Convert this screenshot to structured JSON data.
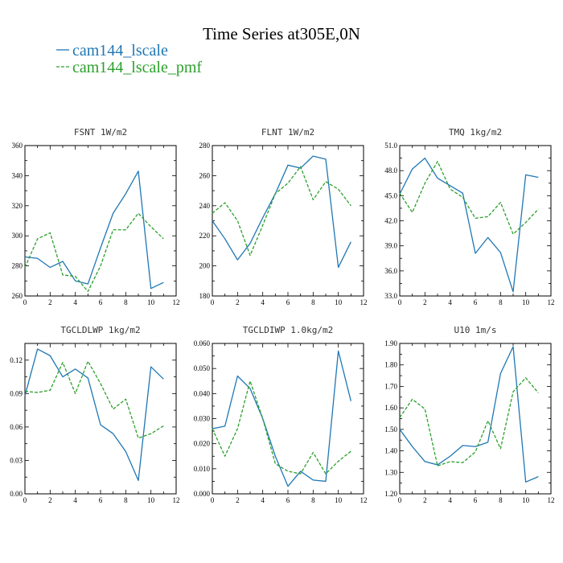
{
  "figure": {
    "title": "Time Series at305E,0N",
    "legend": [
      {
        "label": "cam144_lscale",
        "color": "#1f77b4",
        "dash": "solid"
      },
      {
        "label": "cam144_lscale_pmf",
        "color": "#2ca02c",
        "dash": "dashed"
      }
    ]
  },
  "chart_data": [
    {
      "type": "line",
      "title": "FSNT   1W/m2",
      "x": [
        0,
        1,
        2,
        3,
        4,
        5,
        6,
        7,
        8,
        9,
        10,
        11
      ],
      "xlim": [
        0,
        12
      ],
      "xticks": [
        "0",
        "2",
        "4",
        "6",
        "8",
        "10",
        "12"
      ],
      "ylim": [
        260,
        360
      ],
      "yticks": [
        "260",
        "280",
        "300",
        "320",
        "340",
        "360"
      ],
      "grid": false,
      "series": [
        {
          "name": "cam144_lscale",
          "values": [
            286,
            285,
            279,
            283,
            270,
            268,
            292,
            315,
            328,
            343,
            265,
            269
          ]
        },
        {
          "name": "cam144_lscale_pmf",
          "values": [
            279,
            298,
            302,
            274,
            273,
            263,
            280,
            304,
            304,
            315,
            306,
            298
          ]
        }
      ]
    },
    {
      "type": "line",
      "title": "FLNT   1W/m2",
      "x": [
        0,
        1,
        2,
        3,
        4,
        5,
        6,
        7,
        8,
        9,
        10,
        11
      ],
      "xlim": [
        0,
        12
      ],
      "xticks": [
        "0",
        "2",
        "4",
        "6",
        "8",
        "10",
        "12"
      ],
      "ylim": [
        180,
        280
      ],
      "yticks": [
        "180",
        "200",
        "220",
        "240",
        "260",
        "280"
      ],
      "grid": false,
      "series": [
        {
          "name": "cam144_lscale",
          "values": [
            230,
            218,
            204,
            215,
            232,
            248,
            267,
            265,
            273,
            271,
            199,
            216
          ]
        },
        {
          "name": "cam144_lscale_pmf",
          "values": [
            235,
            242,
            230,
            207,
            227,
            248,
            255,
            266,
            244,
            256,
            251,
            240
          ]
        }
      ]
    },
    {
      "type": "line",
      "title": "TMQ   1kg/m2",
      "x": [
        0,
        1,
        2,
        3,
        4,
        5,
        6,
        7,
        8,
        9,
        10,
        11
      ],
      "xlim": [
        0,
        12
      ],
      "xticks": [
        "0",
        "2",
        "4",
        "6",
        "8",
        "10",
        "12"
      ],
      "ylim": [
        33.0,
        51.0
      ],
      "yticks": [
        "33.0",
        "36.0",
        "39.0",
        "42.0",
        "45.0",
        "48.0",
        "51.0"
      ],
      "grid": false,
      "series": [
        {
          "name": "cam144_lscale",
          "values": [
            45.2,
            48.2,
            49.5,
            47.1,
            46.2,
            45.3,
            38.1,
            40.0,
            38.2,
            33.5,
            47.5,
            47.2
          ]
        },
        {
          "name": "cam144_lscale_pmf",
          "values": [
            45.3,
            43.0,
            46.5,
            49.1,
            45.8,
            44.8,
            42.3,
            42.5,
            44.2,
            40.4,
            41.8,
            43.4
          ]
        }
      ]
    },
    {
      "type": "line",
      "title": "TGCLDLWP   1kg/m2",
      "x": [
        0,
        1,
        2,
        3,
        4,
        5,
        6,
        7,
        8,
        9,
        10,
        11
      ],
      "xlim": [
        0,
        12
      ],
      "xticks": [
        "0",
        "2",
        "4",
        "6",
        "8",
        "10",
        "12"
      ],
      "ylim": [
        0.0,
        0.135
      ],
      "yticks": [
        "0.00",
        "0.03",
        "0.06",
        "0.09",
        "0.12"
      ],
      "grid": false,
      "series": [
        {
          "name": "cam144_lscale",
          "values": [
            0.088,
            0.13,
            0.124,
            0.105,
            0.112,
            0.104,
            0.062,
            0.054,
            0.038,
            0.012,
            0.114,
            0.103
          ]
        },
        {
          "name": "cam144_lscale_pmf",
          "values": [
            0.092,
            0.091,
            0.093,
            0.118,
            0.09,
            0.119,
            0.099,
            0.076,
            0.085,
            0.05,
            0.054,
            0.061
          ]
        }
      ]
    },
    {
      "type": "line",
      "title": "TGCLDIWP   1.0kg/m2",
      "x": [
        0,
        1,
        2,
        3,
        4,
        5,
        6,
        7,
        8,
        9,
        10,
        11
      ],
      "xlim": [
        0,
        12
      ],
      "xticks": [
        "0",
        "2",
        "4",
        "6",
        "8",
        "10",
        "12"
      ],
      "ylim": [
        0.0,
        0.06
      ],
      "yticks": [
        "0.000",
        "0.010",
        "0.020",
        "0.030",
        "0.040",
        "0.050",
        "0.060"
      ],
      "grid": false,
      "series": [
        {
          "name": "cam144_lscale",
          "values": [
            0.026,
            0.027,
            0.047,
            0.042,
            0.03,
            0.015,
            0.003,
            0.009,
            0.0055,
            0.005,
            0.057,
            0.037
          ]
        },
        {
          "name": "cam144_lscale_pmf",
          "values": [
            0.026,
            0.015,
            0.026,
            0.045,
            0.03,
            0.012,
            0.009,
            0.008,
            0.0165,
            0.008,
            0.013,
            0.017
          ]
        }
      ]
    },
    {
      "type": "line",
      "title": "U10   1m/s",
      "x": [
        0,
        1,
        2,
        3,
        4,
        5,
        6,
        7,
        8,
        9,
        10,
        11
      ],
      "xlim": [
        0,
        12
      ],
      "xticks": [
        "0",
        "2",
        "4",
        "6",
        "8",
        "10",
        "12"
      ],
      "ylim": [
        1.2,
        1.9
      ],
      "yticks": [
        "1.20",
        "1.30",
        "1.40",
        "1.50",
        "1.60",
        "1.70",
        "1.80",
        "1.90"
      ],
      "grid": false,
      "series": [
        {
          "name": "cam144_lscale",
          "values": [
            1.5,
            1.42,
            1.35,
            1.335,
            1.375,
            1.425,
            1.42,
            1.44,
            1.76,
            1.885,
            1.255,
            1.28
          ]
        },
        {
          "name": "cam144_lscale_pmf",
          "values": [
            1.555,
            1.64,
            1.595,
            1.33,
            1.35,
            1.345,
            1.395,
            1.54,
            1.41,
            1.675,
            1.74,
            1.67
          ]
        }
      ]
    }
  ]
}
